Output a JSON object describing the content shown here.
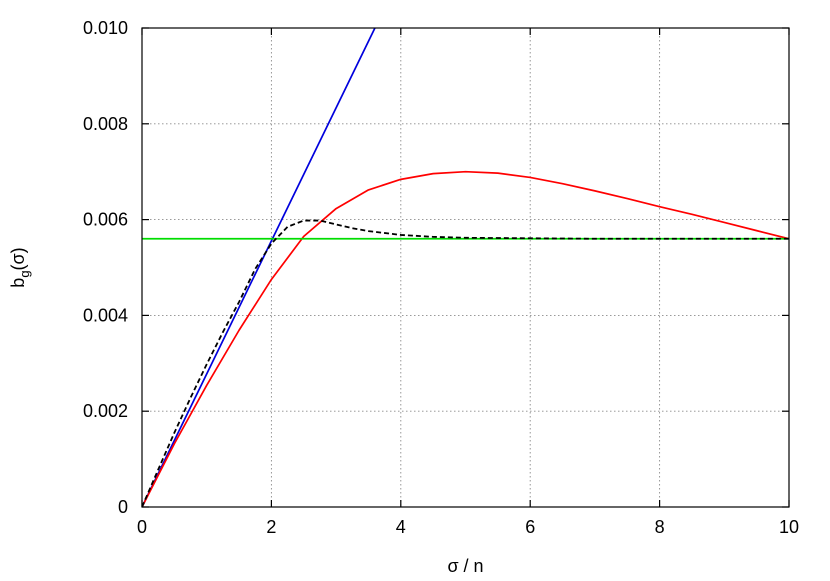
{
  "chart_data": {
    "type": "line",
    "xlabel": "σ / n",
    "ylabel_base": "b",
    "ylabel_sub": "g",
    "ylabel_arg": "(σ)",
    "xlim": [
      0,
      10
    ],
    "ylim": [
      0,
      0.01
    ],
    "x_ticks": [
      0,
      2,
      4,
      6,
      8,
      10
    ],
    "x_tick_labels": [
      "0",
      "2",
      "4",
      "6",
      "8",
      "10"
    ],
    "y_ticks": [
      0,
      0.002,
      0.004,
      0.006,
      0.008,
      0.01
    ],
    "y_tick_labels": [
      "0",
      "0.002",
      "0.004",
      "0.006",
      "0.008",
      "0.010"
    ],
    "grid": true,
    "series": [
      {
        "color": "#0000dd",
        "style": "solid",
        "x": [
          0,
          3.6
        ],
        "y": [
          0,
          0.01
        ]
      },
      {
        "color": "#ff0000",
        "style": "solid",
        "x": [
          0,
          0.5,
          1,
          1.5,
          2,
          2.5,
          3,
          3.5,
          4,
          4.5,
          5,
          5.5,
          6,
          6.5,
          7,
          7.5,
          8,
          8.5,
          9,
          9.5,
          10
        ],
        "y": [
          0,
          0.00132,
          0.00254,
          0.00369,
          0.00475,
          0.00565,
          0.00623,
          0.00662,
          0.00684,
          0.00696,
          0.007,
          0.00697,
          0.00688,
          0.00675,
          0.0066,
          0.00644,
          0.00627,
          0.00611,
          0.00594,
          0.00577,
          0.0056
        ]
      },
      {
        "color": "#00dd00",
        "style": "solid",
        "x": [
          0,
          10
        ],
        "y": [
          0.0056,
          0.0056
        ]
      },
      {
        "color": "#000000",
        "style": "dashed",
        "x": [
          0,
          0.25,
          0.5,
          0.75,
          1,
          1.25,
          1.5,
          1.75,
          2,
          2.25,
          2.5,
          2.75,
          3,
          3.25,
          3.5,
          4,
          4.5,
          5,
          6,
          7,
          8,
          9,
          10
        ],
        "y": [
          0,
          0.00078,
          0.00155,
          0.00228,
          0.00298,
          0.00365,
          0.00428,
          0.00497,
          0.0055,
          0.00585,
          0.00598,
          0.00598,
          0.0059,
          0.00582,
          0.00576,
          0.00568,
          0.00564,
          0.00562,
          0.00561,
          0.0056,
          0.0056,
          0.0056,
          0.0056
        ]
      }
    ]
  }
}
